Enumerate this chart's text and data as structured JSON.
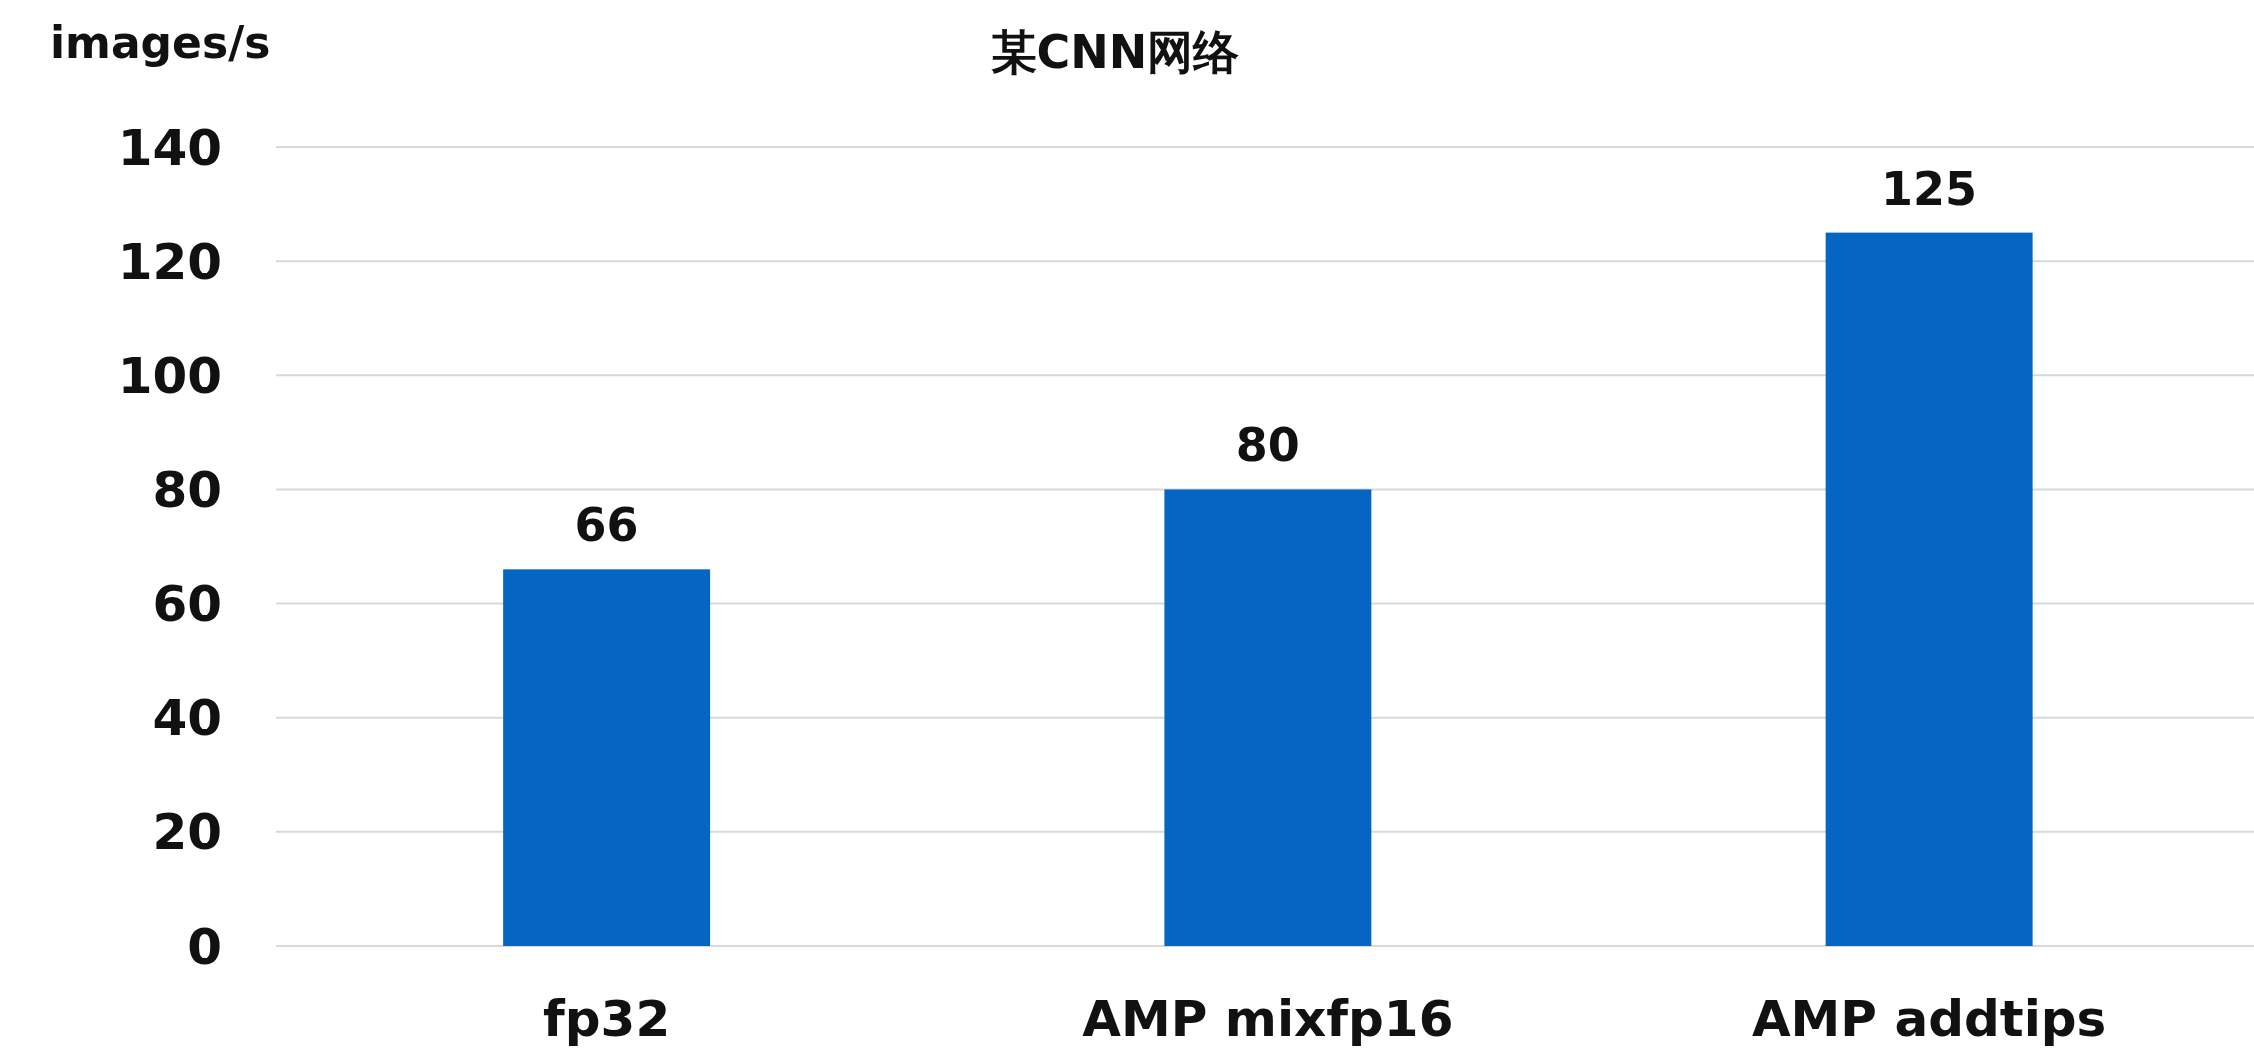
{
  "chart_data": {
    "type": "bar",
    "title": "某CNN网络",
    "ylabel": "images/s",
    "categories": [
      "fp32",
      "AMP mixfp16",
      "AMP addtips"
    ],
    "values": [
      66,
      80,
      125
    ],
    "color": "#0466c2",
    "ylim": [
      0,
      140
    ],
    "yticks": [
      0,
      20,
      40,
      60,
      80,
      100,
      120,
      140
    ],
    "grid": "y",
    "data_labels": true
  }
}
